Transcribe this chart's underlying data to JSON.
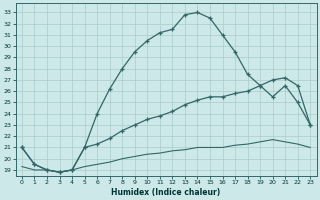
{
  "xlabel": "Humidex (Indice chaleur)",
  "background_color": "#cce8e8",
  "grid_color": "#aacccc",
  "line_color": "#336666",
  "x_ticks": [
    0,
    1,
    2,
    3,
    4,
    5,
    6,
    7,
    8,
    9,
    10,
    11,
    12,
    13,
    14,
    15,
    16,
    17,
    18,
    19,
    20,
    21,
    22,
    23
  ],
  "y_ticks": [
    19,
    20,
    21,
    22,
    23,
    24,
    25,
    26,
    27,
    28,
    29,
    30,
    31,
    32,
    33
  ],
  "ylim": [
    18.5,
    33.8
  ],
  "xlim": [
    -0.5,
    23.5
  ],
  "series1_x": [
    0,
    1,
    2,
    3,
    4,
    5,
    6,
    7,
    8,
    9,
    10,
    11,
    12,
    13,
    14,
    15,
    16,
    17,
    18,
    19,
    20,
    21,
    22,
    23
  ],
  "series1_y": [
    21.0,
    19.5,
    19.0,
    18.8,
    19.0,
    21.0,
    24.0,
    26.2,
    28.0,
    29.5,
    30.5,
    31.2,
    31.5,
    32.8,
    33.0,
    32.5,
    31.0,
    29.5,
    27.5,
    26.5,
    25.5,
    26.5,
    25.0,
    23.0
  ],
  "series2_x": [
    0,
    1,
    2,
    3,
    4,
    5,
    6,
    7,
    8,
    9,
    10,
    11,
    12,
    13,
    14,
    15,
    16,
    17,
    18,
    19,
    20,
    21,
    22,
    23
  ],
  "series2_y": [
    21.0,
    19.5,
    19.0,
    18.8,
    19.0,
    21.0,
    21.3,
    21.8,
    22.5,
    23.0,
    23.5,
    23.8,
    24.2,
    24.8,
    25.2,
    25.5,
    25.5,
    25.8,
    26.0,
    26.5,
    27.0,
    27.2,
    26.5,
    23.0
  ],
  "series3_x": [
    0,
    1,
    2,
    3,
    4,
    5,
    6,
    7,
    8,
    9,
    10,
    11,
    12,
    13,
    14,
    15,
    16,
    17,
    18,
    19,
    20,
    21,
    22,
    23
  ],
  "series3_y": [
    19.3,
    19.0,
    19.0,
    18.8,
    19.0,
    19.3,
    19.5,
    19.7,
    20.0,
    20.2,
    20.4,
    20.5,
    20.7,
    20.8,
    21.0,
    21.0,
    21.0,
    21.2,
    21.3,
    21.5,
    21.7,
    21.5,
    21.3,
    21.0
  ]
}
